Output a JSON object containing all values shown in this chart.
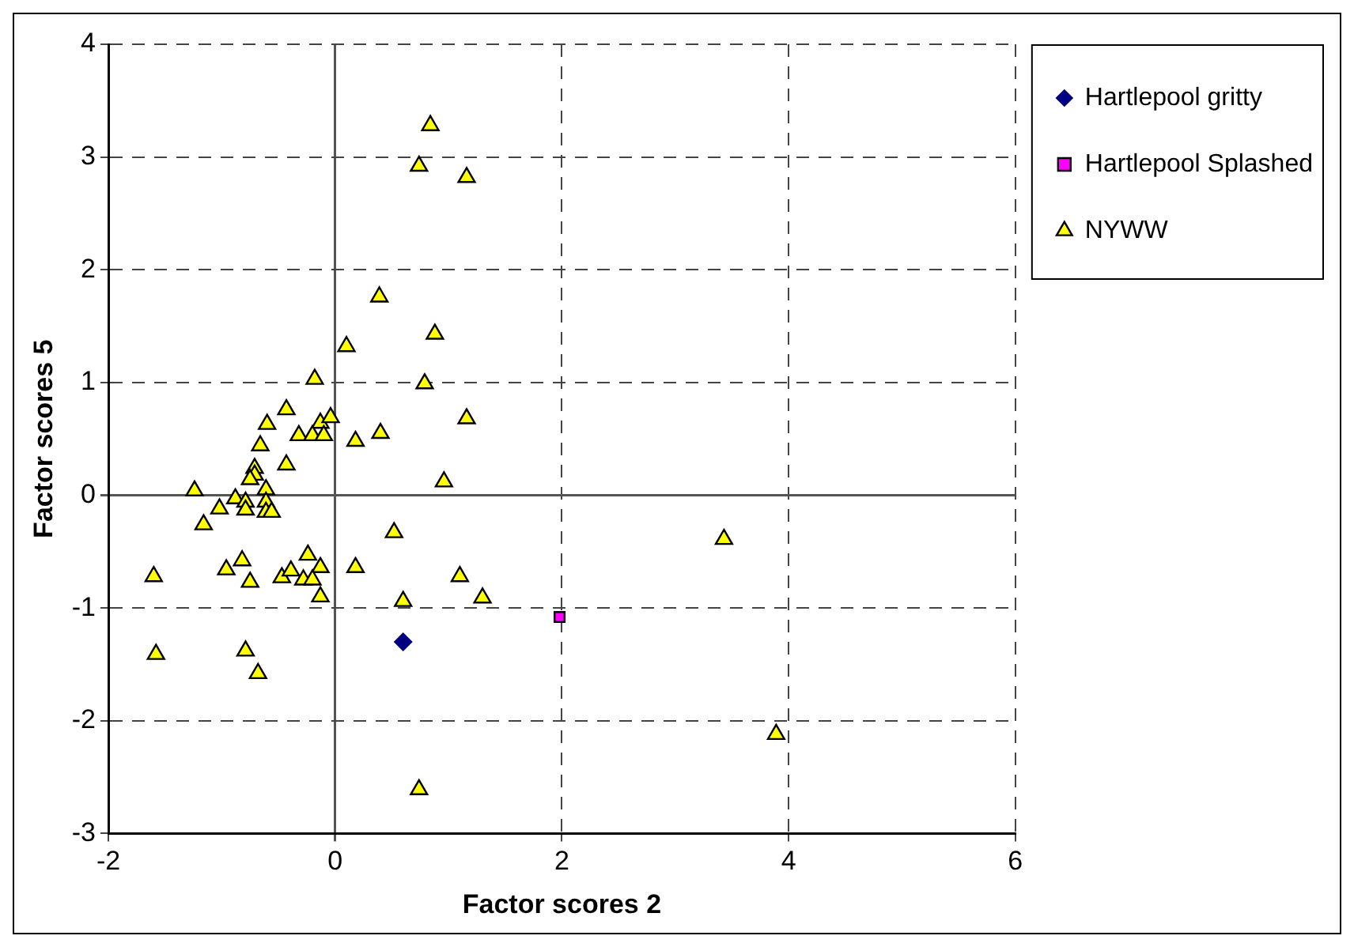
{
  "chart_data": {
    "type": "scatter",
    "xlabel": "Factor scores 2",
    "ylabel": "Factor scores 5",
    "xlim": [
      -2,
      6
    ],
    "xticks": [
      -2,
      0,
      2,
      4,
      6
    ],
    "ylim": [
      -3,
      4
    ],
    "yticks": [
      -3,
      -2,
      -1,
      0,
      1,
      2,
      3,
      4
    ],
    "grid": true,
    "legend": "right",
    "series": [
      {
        "name": "Hartlepool gritty",
        "color": "#000080",
        "marker": "diamond",
        "x": [
          0.6
        ],
        "values": [
          -1.3
        ]
      },
      {
        "name": "Hartlepool Splashed",
        "color": "#ff00ff",
        "marker": "square",
        "x": [
          1.98
        ],
        "values": [
          -1.08
        ]
      },
      {
        "name": "NYWW",
        "color": "#ffff00",
        "marker": "triangle",
        "x": [
          0.84,
          0.74,
          1.16,
          0.39,
          0.88,
          0.1,
          -0.18,
          0.79,
          1.16,
          0.4,
          0.18,
          0.96,
          -0.43,
          -0.6,
          -0.13,
          -0.04,
          -0.32,
          -0.2,
          -0.1,
          -0.66,
          -0.43,
          -0.71,
          -0.71,
          -0.75,
          -0.61,
          -1.24,
          -0.88,
          -0.79,
          -0.61,
          -1.02,
          -0.79,
          -0.61,
          -0.56,
          -1.16,
          0.52,
          -0.24,
          -0.82,
          -0.96,
          -0.13,
          0.18,
          -1.6,
          -0.75,
          -0.47,
          -0.39,
          -0.28,
          -0.2,
          1.1,
          -0.13,
          0.6,
          -1.58,
          -0.79,
          -0.68,
          3.43,
          1.3,
          3.89,
          0.74
        ],
        "values": [
          3.28,
          2.92,
          2.82,
          1.76,
          1.43,
          1.32,
          1.03,
          0.99,
          0.68,
          0.55,
          0.48,
          0.12,
          0.76,
          0.63,
          0.64,
          0.69,
          0.53,
          0.53,
          0.53,
          0.44,
          0.27,
          0.24,
          0.18,
          0.14,
          0.05,
          0.04,
          -0.03,
          -0.06,
          -0.06,
          -0.12,
          -0.13,
          -0.15,
          -0.15,
          -0.26,
          -0.33,
          -0.53,
          -0.58,
          -0.66,
          -0.64,
          -0.64,
          -0.72,
          -0.77,
          -0.73,
          -0.67,
          -0.75,
          -0.75,
          -0.72,
          -0.9,
          -0.94,
          -1.41,
          -1.38,
          -1.58,
          -0.39,
          -0.91,
          -2.12,
          -2.61
        ]
      }
    ]
  }
}
